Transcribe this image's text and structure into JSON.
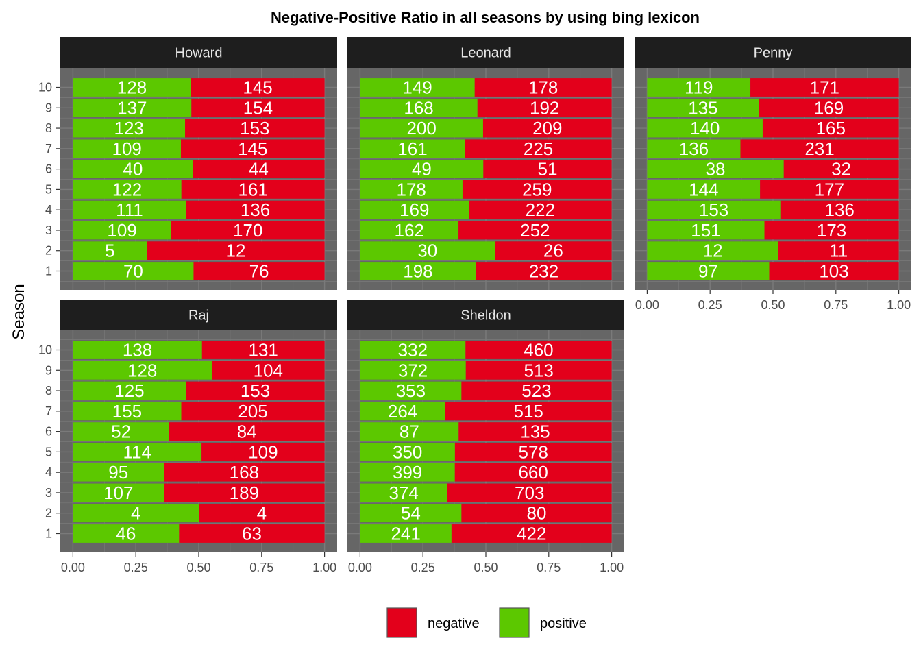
{
  "chart_data": {
    "type": "bar",
    "orientation": "horizontal",
    "stacked": "proportion",
    "title": "Negative-Positive Ratio in all seasons by using bing lexicon",
    "ylabel": "Season",
    "xlabel": "",
    "xlim": [
      0,
      1
    ],
    "x_ticks": [
      "0.00",
      "0.25",
      "0.50",
      "0.75",
      "1.00"
    ],
    "seasons": [
      "1",
      "2",
      "3",
      "4",
      "5",
      "6",
      "7",
      "8",
      "9",
      "10"
    ],
    "legend": {
      "position": "bottom",
      "entries": [
        "negative",
        "positive"
      ]
    },
    "colors": {
      "negative": "#e3001b",
      "positive": "#5cc800",
      "panel": "#666666",
      "grid": "#7a7a7a",
      "strip": "#1e1e1e"
    },
    "panels": [
      {
        "name": "Howard",
        "positive": [
          70,
          5,
          109,
          111,
          122,
          40,
          109,
          123,
          137,
          128
        ],
        "negative": [
          76,
          12,
          170,
          136,
          161,
          44,
          145,
          153,
          154,
          145
        ]
      },
      {
        "name": "Leonard",
        "positive": [
          198,
          30,
          162,
          169,
          178,
          49,
          161,
          200,
          168,
          149
        ],
        "negative": [
          232,
          26,
          252,
          222,
          259,
          51,
          225,
          209,
          192,
          178
        ]
      },
      {
        "name": "Penny",
        "positive": [
          97,
          12,
          151,
          153,
          144,
          38,
          136,
          140,
          135,
          119
        ],
        "negative": [
          103,
          11,
          173,
          136,
          177,
          32,
          231,
          165,
          169,
          171
        ]
      },
      {
        "name": "Raj",
        "positive": [
          46,
          4,
          107,
          95,
          114,
          52,
          155,
          125,
          128,
          138
        ],
        "negative": [
          63,
          4,
          189,
          168,
          109,
          84,
          205,
          153,
          104,
          131
        ]
      },
      {
        "name": "Sheldon",
        "positive": [
          241,
          54,
          374,
          399,
          350,
          87,
          264,
          353,
          372,
          332
        ],
        "negative": [
          422,
          80,
          703,
          660,
          578,
          135,
          515,
          523,
          513,
          460
        ]
      }
    ]
  }
}
